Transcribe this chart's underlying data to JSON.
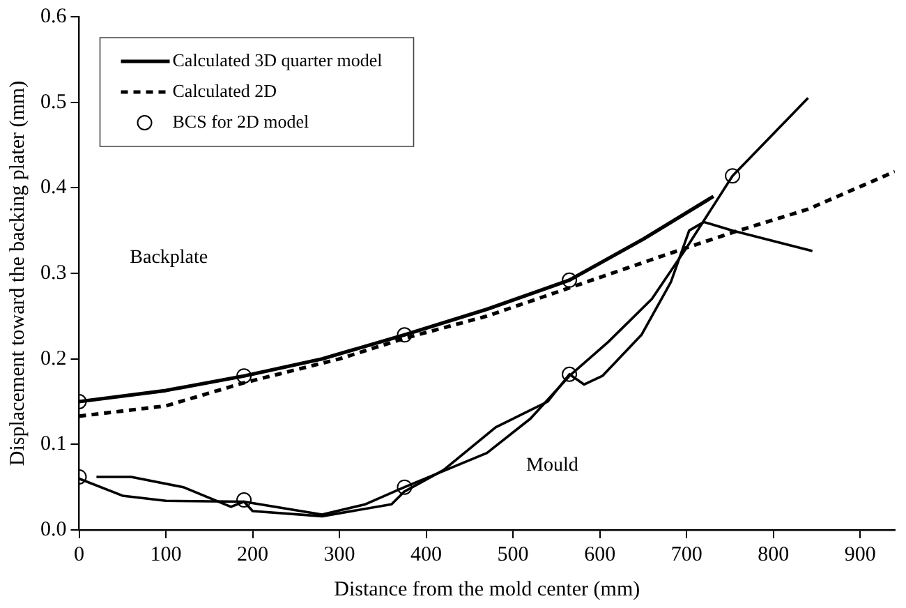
{
  "chart_data": {
    "type": "line",
    "xlabel": "Distance from the mold center (mm)",
    "ylabel": "Displacement toward the backing plater (mm)",
    "xlim": [
      0,
      940
    ],
    "xticks": [
      0,
      100,
      200,
      300,
      400,
      500,
      600,
      700,
      800,
      900
    ],
    "ylim": [
      0,
      0.6
    ],
    "yticks": [
      {
        "value": 0,
        "label": "0.0"
      },
      {
        "value": 0.1,
        "label": "0.1"
      },
      {
        "value": 0.2,
        "label": "0.2"
      },
      {
        "value": 0.3,
        "label": "0.3"
      },
      {
        "value": 0.4,
        "label": "0.4"
      },
      {
        "value": 0.5,
        "label": "0.5"
      },
      {
        "value": 0.6,
        "label": "0.6"
      }
    ],
    "grid": false,
    "legend": "top left",
    "marker": "none",
    "series": [
      {
        "name": "Calculated 3D quarter model",
        "color": "#000000",
        "line_style": "solid",
        "x": [
          0,
          100,
          190,
          280,
          375,
          470,
          565,
          650,
          731
        ],
        "values": [
          0.15,
          0.163,
          0.18,
          0.2,
          0.228,
          0.258,
          0.292,
          0.34,
          0.39
        ]
      },
      {
        "color": "#000000",
        "line_style": "solid",
        "x": [
          0,
          50,
          100,
          190,
          280,
          330,
          375,
          470,
          520,
          565,
          610,
          660,
          700,
          753,
          840
        ],
        "values": [
          0.06,
          0.04,
          0.034,
          0.033,
          0.018,
          0.03,
          0.05,
          0.09,
          0.13,
          0.18,
          0.22,
          0.27,
          0.33,
          0.414,
          0.505
        ]
      },
      {
        "name": "Calculated 2D",
        "color": "#000000",
        "line_style": "dashed",
        "x": [
          0,
          100,
          190,
          300,
          375,
          470,
          565,
          700,
          757,
          840,
          940
        ],
        "values": [
          0.133,
          0.145,
          0.172,
          0.2,
          0.224,
          0.25,
          0.283,
          0.33,
          0.349,
          0.375,
          0.419
        ]
      },
      {
        "color": "#000000",
        "line_style": "solid",
        "x": [
          20,
          60,
          120,
          175,
          190,
          200,
          280,
          360,
          375,
          420,
          480,
          540,
          565,
          582,
          603,
          648,
          682,
          703,
          720,
          753,
          845
        ],
        "values": [
          0.062,
          0.062,
          0.05,
          0.027,
          0.033,
          0.022,
          0.016,
          0.03,
          0.045,
          0.07,
          0.12,
          0.15,
          0.182,
          0.17,
          0.18,
          0.228,
          0.29,
          0.35,
          0.36,
          0.35,
          0.326
        ]
      },
      {
        "name": "BCS for 2D model",
        "type": "scatter",
        "color": "#000000",
        "marker": "circle",
        "x": [
          0,
          190,
          375,
          565,
          753,
          0,
          190,
          375,
          565
        ],
        "values": [
          0.15,
          0.18,
          0.228,
          0.292,
          0.414,
          0.062,
          0.035,
          0.05,
          0.182
        ]
      }
    ],
    "annotations": [
      "Backplate",
      "Mould"
    ]
  }
}
